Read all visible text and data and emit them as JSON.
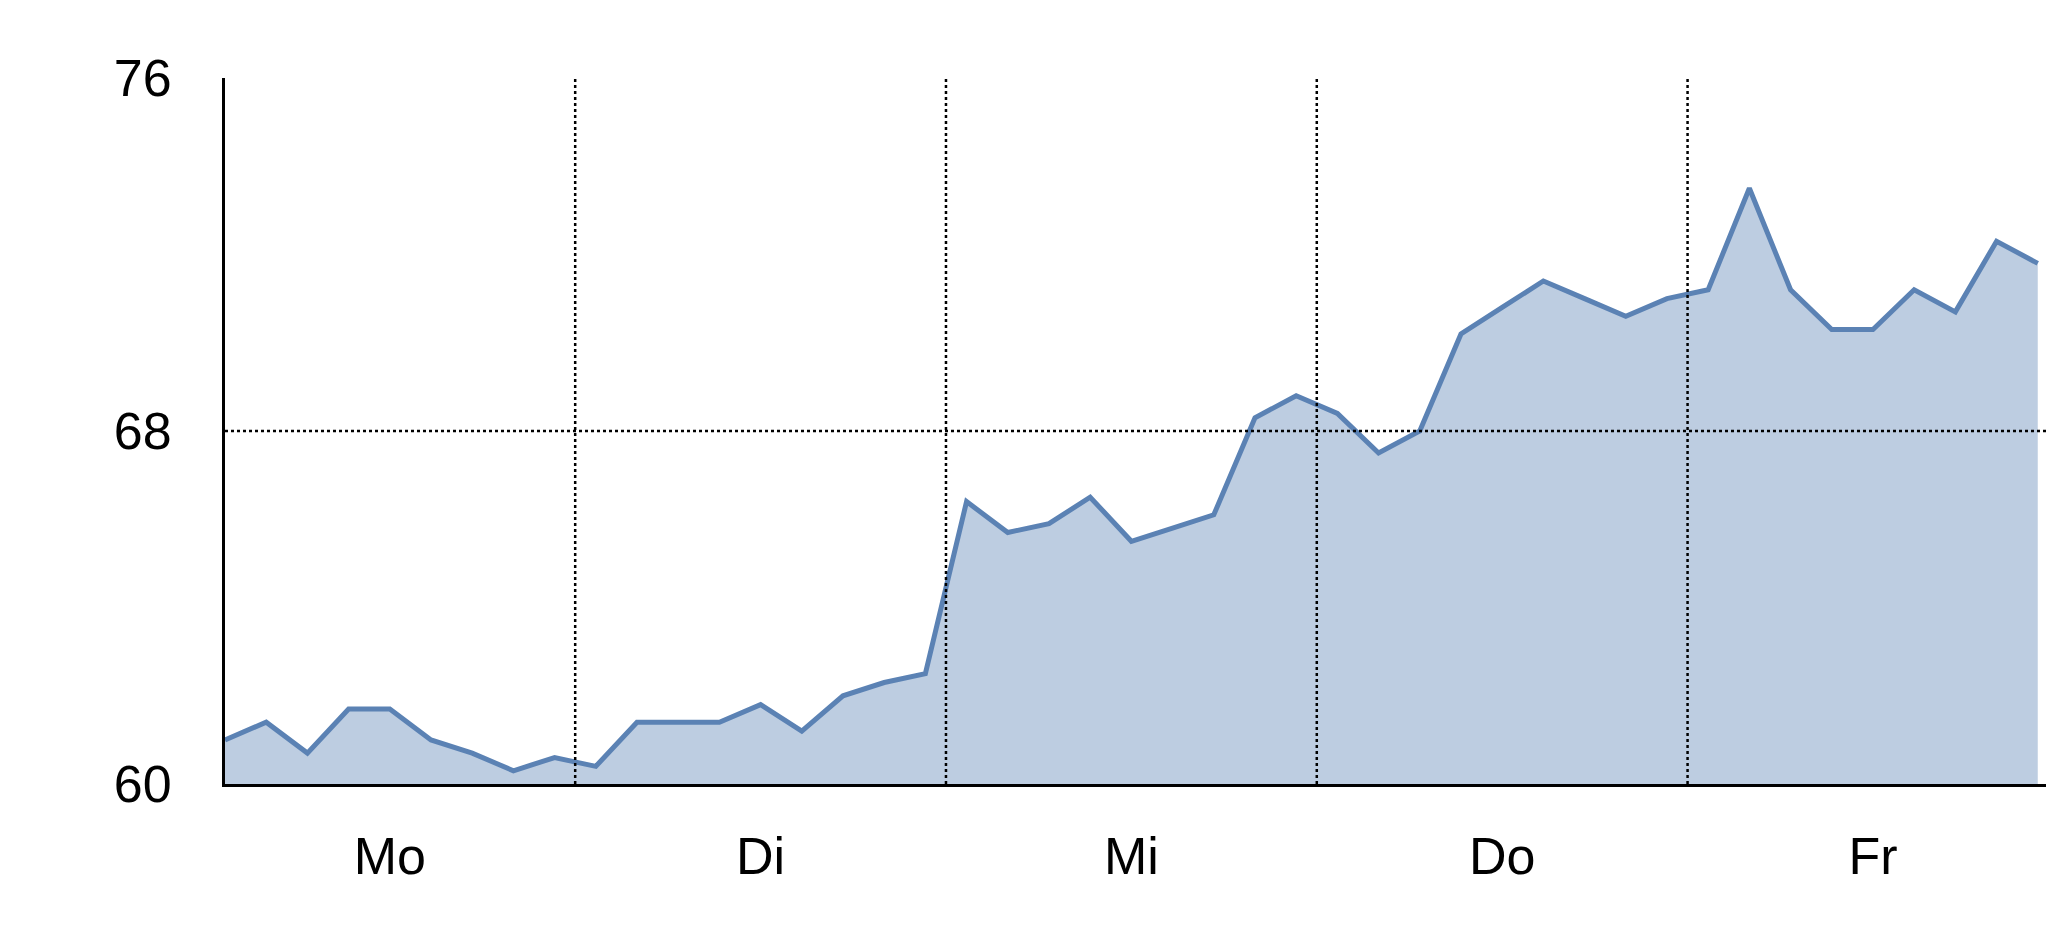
{
  "chart_data": {
    "type": "area",
    "categories": [
      null,
      null,
      null,
      null,
      "Mo",
      null,
      null,
      null,
      null,
      null,
      null,
      null,
      null,
      "Di",
      null,
      null,
      null,
      null,
      null,
      null,
      null,
      null,
      "Mi",
      null,
      null,
      null,
      null,
      null,
      null,
      null,
      null,
      "Do",
      null,
      null,
      null,
      null,
      null,
      null,
      null,
      null,
      "Fr",
      null,
      null,
      null,
      null
    ],
    "series": [
      {
        "color": "#5b82b4",
        "values": [
          61.0,
          61.4,
          60.7,
          61.7,
          61.7,
          61.0,
          60.7,
          60.3,
          60.6,
          60.4,
          61.4,
          61.4,
          61.4,
          61.8,
          61.2,
          62.0,
          62.3,
          62.5,
          66.4,
          65.7,
          65.9,
          66.5,
          65.5,
          65.8,
          66.1,
          68.3,
          68.8,
          68.4,
          67.5,
          68.0,
          70.2,
          70.8,
          71.4,
          71.0,
          70.6,
          71.0,
          71.2,
          73.5,
          71.2,
          70.3,
          70.3,
          71.2,
          70.7,
          72.3,
          71.8
        ]
      }
    ],
    "ylim": [
      60,
      76
    ],
    "yticks": [
      60,
      68,
      76
    ],
    "grid": "x",
    "ref_lines": [
      {
        "axis": "y",
        "value": 68,
        "line_style": "dotted",
        "color": "#000000"
      }
    ]
  }
}
